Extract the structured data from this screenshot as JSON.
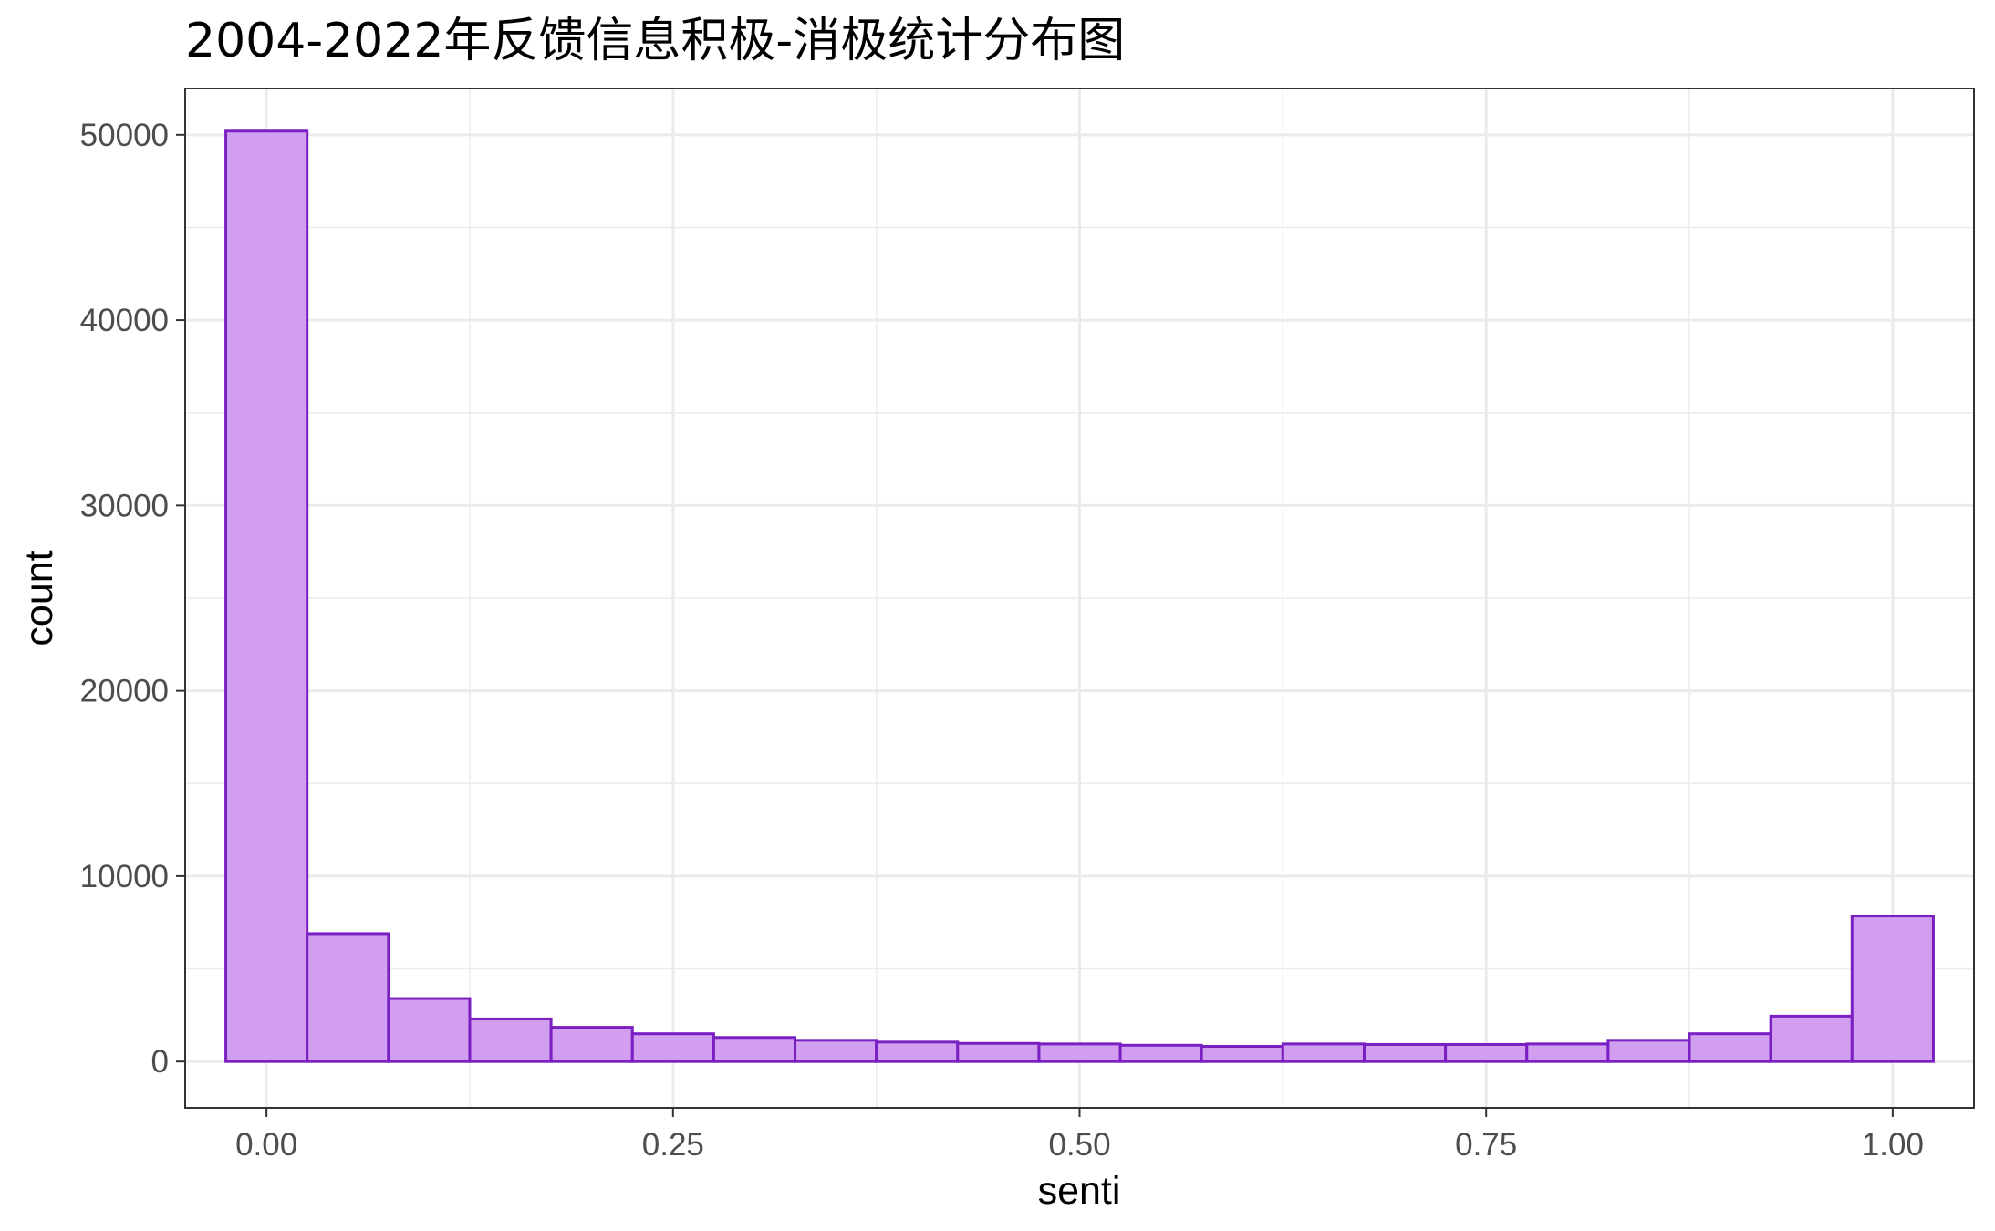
{
  "chart_data": {
    "type": "histogram",
    "title": "2004-2022年反馈信息积极-消极统计分布图",
    "xlabel": "senti",
    "ylabel": "count",
    "xlim": [
      -0.05,
      1.05
    ],
    "ylim": [
      -2500,
      52500
    ],
    "x_ticks": [
      0,
      0.25,
      0.5,
      0.75,
      1.0
    ],
    "x_tick_labels": [
      "0.00",
      "0.25",
      "0.50",
      "0.75",
      "1.00"
    ],
    "y_ticks": [
      0,
      10000,
      20000,
      30000,
      40000,
      50000
    ],
    "y_tick_labels": [
      "0",
      "10000",
      "20000",
      "30000",
      "40000",
      "50000"
    ],
    "bin_width": 0.05,
    "bin_centers": [
      0.0,
      0.05,
      0.1,
      0.15,
      0.2,
      0.25,
      0.3,
      0.35,
      0.4,
      0.45,
      0.5,
      0.55,
      0.6,
      0.65,
      0.7,
      0.75,
      0.8,
      0.85,
      0.9,
      0.95,
      1.0
    ],
    "values": [
      50200,
      6900,
      3400,
      2300,
      1850,
      1500,
      1300,
      1150,
      1050,
      980,
      950,
      880,
      820,
      950,
      920,
      920,
      950,
      1150,
      1500,
      2450,
      7850
    ],
    "fill_color": "#d19ef0",
    "stroke_color": "#7a1fc2",
    "grid": true,
    "legend": "none"
  }
}
